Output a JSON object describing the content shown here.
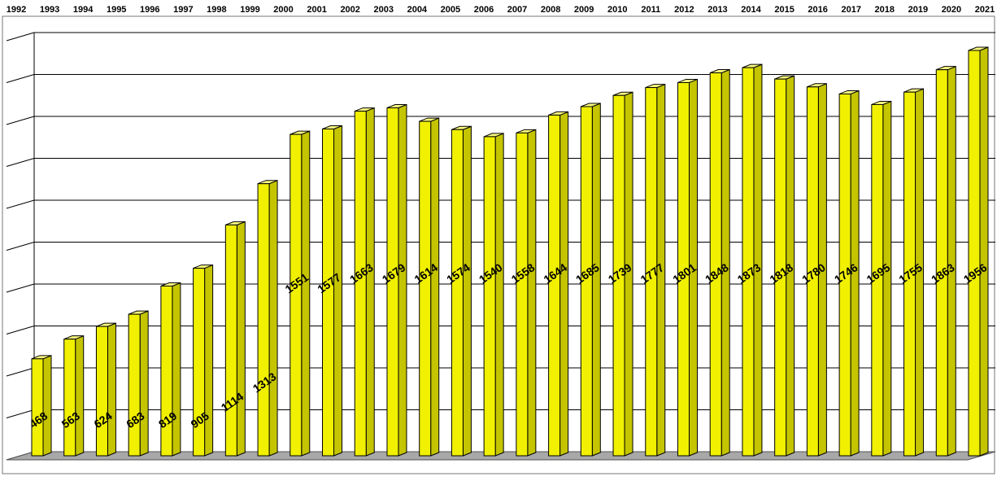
{
  "chart_data": {
    "type": "bar",
    "title": "",
    "xlabel": "",
    "ylabel": "",
    "categories": [
      "1992",
      "1993",
      "1994",
      "1995",
      "1996",
      "1997",
      "1998",
      "1999",
      "2000",
      "2001",
      "2002",
      "2003",
      "2004",
      "2005",
      "2006",
      "2007",
      "2008",
      "2009",
      "2010",
      "2011",
      "2012",
      "2013",
      "2014",
      "2015",
      "2016",
      "2017",
      "2018",
      "2019",
      "2020",
      "2021"
    ],
    "values": [
      468,
      563,
      624,
      683,
      819,
      905,
      1114,
      1313,
      1551,
      1577,
      1663,
      1679,
      1614,
      1574,
      1540,
      1558,
      1644,
      1685,
      1739,
      1777,
      1801,
      1848,
      1873,
      1818,
      1780,
      1746,
      1695,
      1755,
      1863,
      1956
    ],
    "data_labels": [
      "468",
      "563",
      "624",
      "683",
      "819",
      "905",
      "1114",
      "1313",
      "1551",
      "1577",
      "1663",
      "1679",
      "1614",
      "1574",
      "1540",
      "1558",
      "1644",
      "1685",
      "1739",
      "1777",
      "1801",
      "1848",
      "1873",
      "1818",
      "1780",
      "1746",
      "1695",
      "1755",
      "1863",
      "1956"
    ],
    "category_axis_position": "top",
    "value_axis_tick_labels": "none",
    "grid": true,
    "legend": "none",
    "colors": {
      "bar_front": "#f0f000",
      "bar_side": "#c4c400",
      "bar_top": "#fafa80",
      "bar_outline": "#000000",
      "floor": "#a8a8a8",
      "gridline": "#000000",
      "label_text": "#000000"
    }
  }
}
